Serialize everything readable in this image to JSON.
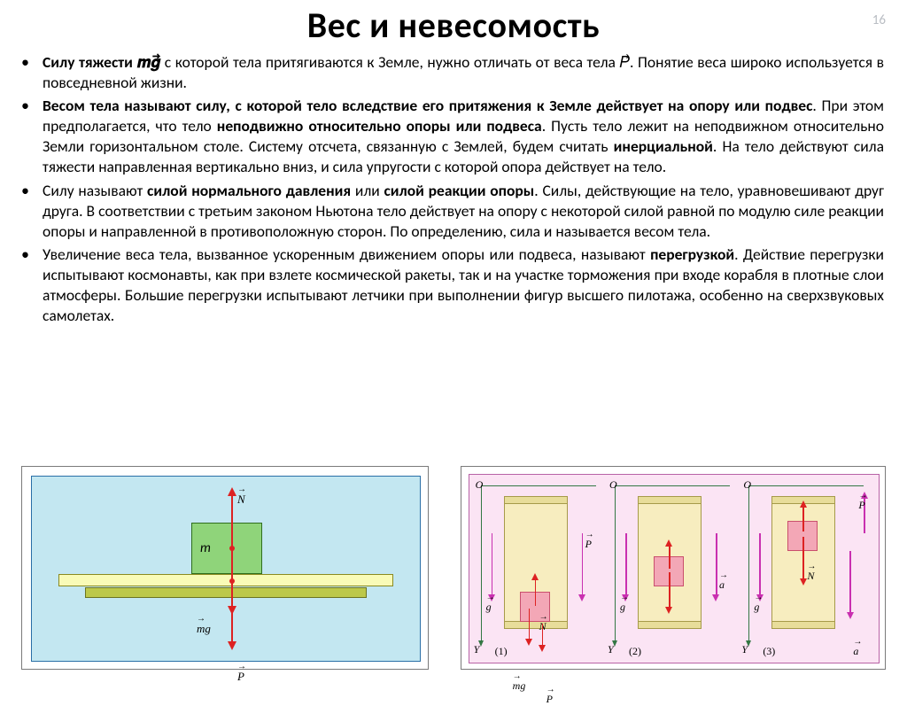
{
  "page_number": "16",
  "title": "Вес и невесомость",
  "bullets": [
    {
      "pre": "Силу тяжести ",
      "formula_mg": "𝒎𝒈⃗",
      "mid": "  с которой тела притягиваются к Земле, нужно отличать от веса тела ",
      "formula_P": "𝑃⃗",
      "post": ". Понятие веса широко используется в повседневной жизни."
    },
    {
      "html": " <b>Весом тела называют силу, с которой тело вследствие его притяжения к Земле действует на опору или подвес</b>. При этом предполагается, что тело <b>неподвижно относительно опоры или подвеса</b>. Пусть тело лежит на неподвижном относительно Земли горизонтальном столе. Систему отсчета, связанную с Землей, будем считать <b>инерциальной</b>. На тело действуют сила тяжести  направленная вертикально вниз, и сила упругости  с которой опора действует на тело."
    },
    {
      "html": "Силу  называют <b>силой нормального давления</b> или <b>силой реакции опоры</b>. Силы, действующие на тело, уравновешивают друг друга.  В соответствии с третьим законом Ньютона тело действует на опору с некоторой силой  равной по модулю силе реакции опоры и направленной в противоположную сторон.  По определению, сила  и называется весом тела."
    },
    {
      "html": "Увеличение веса тела, вызванное ускоренным движением опоры или подвеса, называют <b>перегрузкой</b>. Действие перегрузки испытывают космонавты, как при взлете космической ракеты, так и на участке торможения при входе корабля в плотные слои атмосферы. Большие перегрузки испытывают летчики при выполнении фигур высшего пилотажа, особенно на сверхзвуковых самолетах."
    }
  ],
  "figA": {
    "bg": "#c3e7f1",
    "block_color": "#8fd47a",
    "table_color": "#f9fbb7",
    "labels": {
      "m": "m",
      "N": "N",
      "mg": "mg",
      "P": "P"
    }
  },
  "figB": {
    "bg": "#fbe4f4",
    "elev_color": "#f7edbf",
    "box_color": "#f3a7b6",
    "arrow_purple": "#c930b0",
    "arrow_red": "#d22",
    "labels": {
      "O": "O",
      "Y": "Y",
      "g": "g",
      "a": "a",
      "N": "N",
      "mg": "mg",
      "P": "P"
    },
    "panel_nums": [
      "(1)",
      "(2)",
      "(3)"
    ]
  }
}
